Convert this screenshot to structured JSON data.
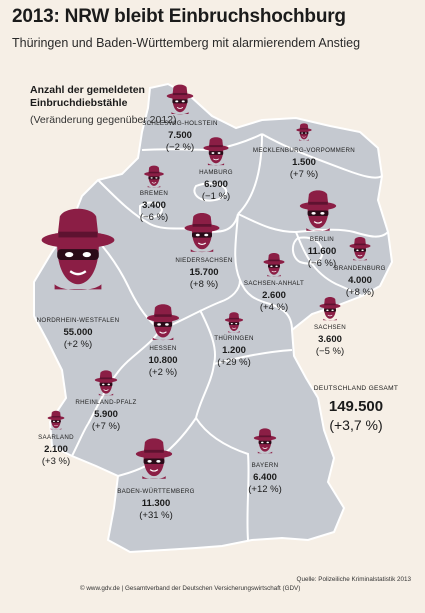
{
  "title": "2013: NRW bleibt Einbruchshochburg",
  "subtitle": "Thüringen und Baden-Württemberg mit alarmierendem Anstieg",
  "legend": {
    "title": "Anzahl der gemeldeten Einbruchdiebstähle",
    "note": "(Veränderung gegenüber 2012)"
  },
  "colors": {
    "background": "#f6efe6",
    "land": "#c5c9d0",
    "border": "#ffffff",
    "burglar": "#8b1e45"
  },
  "icon": "burglar-icon",
  "states": [
    {
      "name": "SCHLESWIG-HOLSTEIN",
      "value": "7.500",
      "change": "(−2 %)"
    },
    {
      "name": "MECKLENBURG-VORPOMMERN",
      "value": "1.500",
      "change": "(+7 %)"
    },
    {
      "name": "HAMBURG",
      "value": "6.900",
      "change": "(−1 %)"
    },
    {
      "name": "BREMEN",
      "value": "3.400",
      "change": "(−6 %)"
    },
    {
      "name": "BERLIN",
      "value": "11.600",
      "change": "(−6 %)"
    },
    {
      "name": "NIEDERSACHSEN",
      "value": "15.700",
      "change": "(+8 %)"
    },
    {
      "name": "BRANDENBURG",
      "value": "4.000",
      "change": "(+8 %)"
    },
    {
      "name": "SACHSEN-ANHALT",
      "value": "2.600",
      "change": "(+4 %)"
    },
    {
      "name": "NORDRHEIN-WESTFALEN",
      "value": "55.000",
      "change": "(+2 %)"
    },
    {
      "name": "SACHSEN",
      "value": "3.600",
      "change": "(−5 %)"
    },
    {
      "name": "THÜRINGEN",
      "value": "1.200",
      "change": "(+29 %)"
    },
    {
      "name": "HESSEN",
      "value": "10.800",
      "change": "(+2 %)"
    },
    {
      "name": "RHEINLAND-PFALZ",
      "value": "5.900",
      "change": "(+7 %)"
    },
    {
      "name": "SAARLAND",
      "value": "2.100",
      "change": "(+3 %)"
    },
    {
      "name": "BAYERN",
      "value": "6.400",
      "change": "(+12 %)"
    },
    {
      "name": "BADEN-WÜRTTEMBERG",
      "value": "11.300",
      "change": "(+31 %)"
    }
  ],
  "total": {
    "name": "DEUTSCHLAND GESAMT",
    "value": "149.500",
    "change": "(+3,7 %)"
  },
  "source": "Quelle: Polizeiliche Kriminalstatistik 2013",
  "copyright": "© www.gdv.de | Gesamtverband der Deutschen Versicherungswirtschaft (GDV)"
}
